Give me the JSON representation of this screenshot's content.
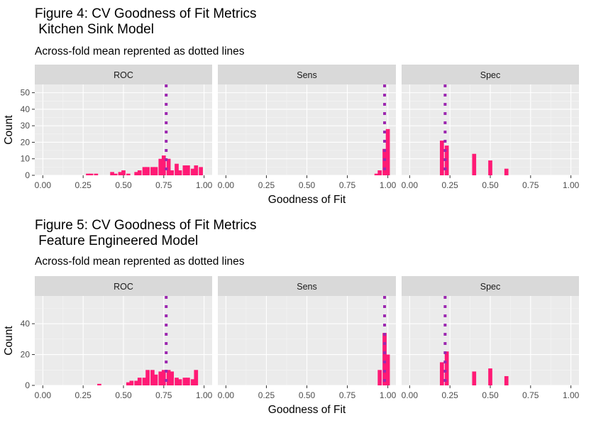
{
  "chart_data": [
    {
      "type": "bar",
      "title": "Figure 4: CV Goodness of Fit Metrics\n Kitchen Sink Model",
      "subtitle": "Across-fold mean reprented as dotted lines",
      "xlabel": "Goodness of Fit",
      "ylabel": "Count",
      "xlim": [
        0,
        1
      ],
      "ylim": [
        0,
        55
      ],
      "x_ticks": [
        "0.00",
        "0.25",
        "0.50",
        "0.75",
        "1.00"
      ],
      "y_ticks": [
        0,
        10,
        20,
        30,
        40,
        50
      ],
      "panels": [
        {
          "name": "ROC",
          "mean": 0.765,
          "bins": [
            {
              "x": 0.28,
              "count": 1
            },
            {
              "x": 0.3,
              "count": 1
            },
            {
              "x": 0.33,
              "count": 1
            },
            {
              "x": 0.43,
              "count": 2
            },
            {
              "x": 0.45,
              "count": 1
            },
            {
              "x": 0.48,
              "count": 2
            },
            {
              "x": 0.5,
              "count": 3
            },
            {
              "x": 0.53,
              "count": 1
            },
            {
              "x": 0.58,
              "count": 2
            },
            {
              "x": 0.6,
              "count": 3
            },
            {
              "x": 0.63,
              "count": 5
            },
            {
              "x": 0.65,
              "count": 5
            },
            {
              "x": 0.68,
              "count": 5
            },
            {
              "x": 0.7,
              "count": 5
            },
            {
              "x": 0.73,
              "count": 10
            },
            {
              "x": 0.75,
              "count": 12
            },
            {
              "x": 0.78,
              "count": 10
            },
            {
              "x": 0.8,
              "count": 3
            },
            {
              "x": 0.83,
              "count": 7
            },
            {
              "x": 0.85,
              "count": 3
            },
            {
              "x": 0.88,
              "count": 6
            },
            {
              "x": 0.9,
              "count": 6
            },
            {
              "x": 0.93,
              "count": 4
            },
            {
              "x": 0.95,
              "count": 6
            },
            {
              "x": 0.98,
              "count": 5
            }
          ]
        },
        {
          "name": "Sens",
          "mean": 0.98,
          "bins": [
            {
              "x": 0.93,
              "count": 1
            },
            {
              "x": 0.95,
              "count": 3
            },
            {
              "x": 0.98,
              "count": 16
            },
            {
              "x": 1.0,
              "count": 28
            }
          ]
        },
        {
          "name": "Spec",
          "mean": 0.22,
          "bins": [
            {
              "x": 0.2,
              "count": 21
            },
            {
              "x": 0.23,
              "count": 18
            },
            {
              "x": 0.4,
              "count": 13
            },
            {
              "x": 0.5,
              "count": 9
            },
            {
              "x": 0.6,
              "count": 4
            }
          ]
        }
      ]
    },
    {
      "type": "bar",
      "title": "Figure 5: CV Goodness of Fit Metrics\n Feature Engineered Model",
      "subtitle": "Across-fold mean reprented as dotted lines",
      "xlabel": "Goodness of Fit",
      "ylabel": "Count",
      "xlim": [
        0,
        1
      ],
      "ylim": [
        0,
        58
      ],
      "x_ticks": [
        "0.00",
        "0.25",
        "0.50",
        "0.75",
        "1.00"
      ],
      "y_ticks": [
        0,
        20,
        40
      ],
      "panels": [
        {
          "name": "ROC",
          "mean": 0.765,
          "bins": [
            {
              "x": 0.35,
              "count": 1
            },
            {
              "x": 0.53,
              "count": 2
            },
            {
              "x": 0.55,
              "count": 3
            },
            {
              "x": 0.58,
              "count": 3
            },
            {
              "x": 0.6,
              "count": 5
            },
            {
              "x": 0.63,
              "count": 5
            },
            {
              "x": 0.65,
              "count": 10
            },
            {
              "x": 0.68,
              "count": 10
            },
            {
              "x": 0.7,
              "count": 7
            },
            {
              "x": 0.73,
              "count": 9
            },
            {
              "x": 0.75,
              "count": 10
            },
            {
              "x": 0.78,
              "count": 10
            },
            {
              "x": 0.8,
              "count": 9
            },
            {
              "x": 0.83,
              "count": 5
            },
            {
              "x": 0.85,
              "count": 4
            },
            {
              "x": 0.88,
              "count": 5
            },
            {
              "x": 0.9,
              "count": 5
            },
            {
              "x": 0.93,
              "count": 4
            },
            {
              "x": 0.95,
              "count": 10
            }
          ]
        },
        {
          "name": "Sens",
          "mean": 0.98,
          "bins": [
            {
              "x": 0.95,
              "count": 10
            },
            {
              "x": 0.98,
              "count": 34
            },
            {
              "x": 1.0,
              "count": 20
            }
          ]
        },
        {
          "name": "Spec",
          "mean": 0.22,
          "bins": [
            {
              "x": 0.2,
              "count": 15
            },
            {
              "x": 0.23,
              "count": 22
            },
            {
              "x": 0.4,
              "count": 9
            },
            {
              "x": 0.5,
              "count": 11
            },
            {
              "x": 0.6,
              "count": 6
            }
          ]
        }
      ]
    }
  ],
  "style": {
    "bar_color": "#ff1a75",
    "mean_line_color": "#9c27b0",
    "panel_bg": "#ebebeb",
    "strip_bg": "#d9d9d9",
    "grid_color": "#ffffff"
  }
}
